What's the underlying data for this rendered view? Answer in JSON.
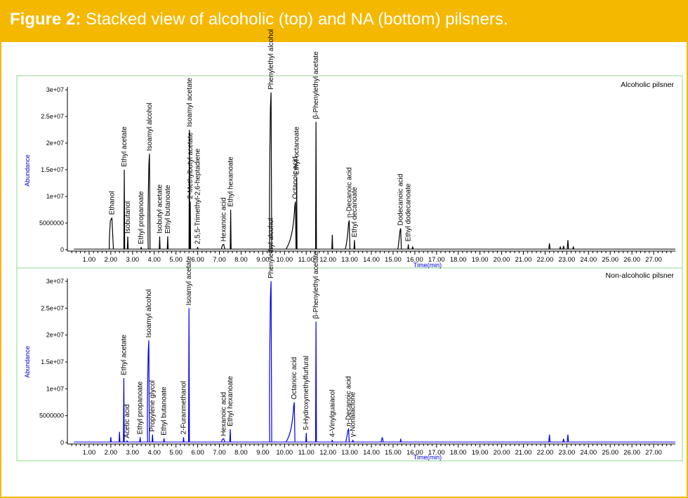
{
  "figure": {
    "label": "Figure 2:",
    "caption": "Stacked view of alcoholic (top) and NA (bottom) pilsners."
  },
  "colors": {
    "header": "#f5b800",
    "panel_border": "#8fd88f",
    "axis_label": "#0000dd"
  },
  "chart_data": [
    {
      "type": "line",
      "title": "Alcoholic pilsner",
      "xlabel": "Time(min)",
      "ylabel": "Abundance",
      "xlim": [
        0,
        28
      ],
      "ylim": [
        0,
        30000000
      ],
      "x_ticks": [
        1.0,
        2.0,
        3.0,
        4.0,
        5.0,
        6.0,
        7.0,
        8.0,
        9.0,
        10.0,
        11.0,
        12.0,
        13.0,
        14.0,
        15.0,
        16.0,
        17.0,
        18.0,
        19.0,
        20.0,
        21.0,
        22.0,
        23.0,
        24.0,
        25.0,
        26.0,
        27.0
      ],
      "x_tick_labels": [
        "1.00",
        "2.00",
        "3.00",
        "4.00",
        "5.00",
        "6.00",
        "7.00",
        "8.00",
        "9.00",
        "10.00",
        "11.00",
        "12.00",
        "13.00",
        "14.00",
        "15.00",
        "16.00",
        "17.00",
        "18.00",
        "19.00",
        "20.00",
        "21.00",
        "22.00",
        "23.00",
        "24.00",
        "25.00",
        "26.00",
        "27.00"
      ],
      "y_ticks": [
        0,
        5000000,
        10000000,
        15000000,
        20000000,
        25000000,
        30000000
      ],
      "y_tick_labels": [
        "0",
        "5000000",
        "1e+07",
        "1.5e+07",
        "2e+07",
        "2.5e+07",
        "3e+07"
      ],
      "grid": false,
      "legend": "none",
      "color": "#000000",
      "peaks": [
        {
          "label": "Ethanol",
          "x": 2.05,
          "y": 6000000,
          "w": 0.07,
          "tail": 0.05
        },
        {
          "label": "Ethyl acetate",
          "x": 2.62,
          "y": 15000000,
          "w": 0.02
        },
        {
          "label": "Isobutanol",
          "x": 2.78,
          "y": 2500000,
          "w": 0.02
        },
        {
          "label": "Ethyl propanoate",
          "x": 3.4,
          "y": 500000,
          "w": 0.02
        },
        {
          "label": "Isoamyl alcohol",
          "x": 3.78,
          "y": 18000000,
          "w": 0.025,
          "tail": 0.03
        },
        {
          "label": "Isobutyl acetate",
          "x": 4.25,
          "y": 2500000,
          "w": 0.02
        },
        {
          "label": "Ethyl butanoate",
          "x": 4.62,
          "y": 2500000,
          "w": 0.02
        },
        {
          "label": "Isoamyl acetate",
          "x": 5.62,
          "y": 22500000,
          "w": 0.02
        },
        {
          "label": "2-Methylbutyl acetate",
          "x": 5.66,
          "y": 9000000,
          "w": 0.015
        },
        {
          "label": "2,5,5-Trimethyl-2,6-heptadiene",
          "x": 6.0,
          "y": 500000,
          "w": 0.02
        },
        {
          "label": "Hexanoic acid",
          "x": 7.2,
          "y": 1000000,
          "w": 0.05,
          "tail": 0.05
        },
        {
          "label": "Ethyl hexanoate",
          "x": 7.52,
          "y": 7500000,
          "w": 0.02
        },
        {
          "label": "Phenylethyl alcohol",
          "x": 9.38,
          "y": 29500000,
          "w": 0.03,
          "tail": 0.03
        },
        {
          "label": "Octanoic acid",
          "x": 10.5,
          "y": 9000000,
          "w": 0.03,
          "tail": 0.4
        },
        {
          "label": "Ethyl octanoate",
          "x": 10.56,
          "y": 13500000,
          "w": 0.015
        },
        {
          "label": "β-Phenylethyl acetate",
          "x": 11.45,
          "y": 24000000,
          "w": 0.02
        },
        {
          "label": "",
          "x": 12.2,
          "y": 2800000,
          "w": 0.02
        },
        {
          "label": "n-Decanoic acid",
          "x": 12.98,
          "y": 5500000,
          "w": 0.03,
          "tail": 0.15
        },
        {
          "label": "Ethyl decanoate",
          "x": 13.22,
          "y": 1800000,
          "w": 0.02
        },
        {
          "label": "Dodecanoic acid",
          "x": 15.35,
          "y": 4000000,
          "w": 0.03,
          "tail": 0.1
        },
        {
          "label": "Ethyl dodecanoate",
          "x": 15.7,
          "y": 1000000,
          "w": 0.02
        },
        {
          "label": "",
          "x": 15.9,
          "y": 500000,
          "w": 0.03
        },
        {
          "label": "",
          "x": 22.2,
          "y": 1200000,
          "w": 0.03
        },
        {
          "label": "",
          "x": 22.7,
          "y": 500000,
          "w": 0.03
        },
        {
          "label": "",
          "x": 22.85,
          "y": 700000,
          "w": 0.03
        },
        {
          "label": "",
          "x": 23.05,
          "y": 1800000,
          "w": 0.03
        },
        {
          "label": "",
          "x": 23.3,
          "y": 500000,
          "w": 0.03
        }
      ]
    },
    {
      "type": "line",
      "title": "Non-alcoholic pilsner",
      "xlabel": "Time(min)",
      "ylabel": "Abundance",
      "xlim": [
        0,
        28
      ],
      "ylim": [
        0,
        30000000
      ],
      "x_ticks": [
        1.0,
        2.0,
        3.0,
        4.0,
        5.0,
        6.0,
        7.0,
        8.0,
        9.0,
        10.0,
        11.0,
        12.0,
        13.0,
        14.0,
        15.0,
        16.0,
        17.0,
        18.0,
        19.0,
        20.0,
        21.0,
        22.0,
        23.0,
        24.0,
        25.0,
        26.0,
        27.0
      ],
      "x_tick_labels": [
        "1.00",
        "2.00",
        "3.00",
        "4.00",
        "5.00",
        "6.00",
        "7.00",
        "8.00",
        "9.00",
        "10.00",
        "11.00",
        "12.00",
        "13.00",
        "14.00",
        "15.00",
        "16.00",
        "17.00",
        "18.00",
        "19.00",
        "20.00",
        "21.00",
        "22.00",
        "23.00",
        "24.00",
        "25.00",
        "26.00",
        "27.00"
      ],
      "y_ticks": [
        0,
        5000000,
        10000000,
        15000000,
        20000000,
        25000000,
        30000000
      ],
      "y_tick_labels": [
        "0",
        "5000000",
        "1e+07",
        "1.5e+07",
        "2e+07",
        "2.5e+07",
        "3e+07"
      ],
      "grid": false,
      "legend": "none",
      "color": "#0000ee",
      "peaks": [
        {
          "label": "",
          "x": 2.0,
          "y": 1000000,
          "w": 0.02
        },
        {
          "label": "",
          "x": 2.4,
          "y": 2000000,
          "w": 0.02
        },
        {
          "label": "Ethyl acetate",
          "x": 2.6,
          "y": 12000000,
          "w": 0.02
        },
        {
          "label": "Acetic acid",
          "x": 2.75,
          "y": 300000,
          "w": 0.03
        },
        {
          "label": "Ethyl propanoate",
          "x": 3.35,
          "y": 1000000,
          "w": 0.02
        },
        {
          "label": "Isoamyl alcohol",
          "x": 3.75,
          "y": 19000000,
          "w": 0.025,
          "tail": 0.03
        },
        {
          "label": "Propylene glycol",
          "x": 3.92,
          "y": 1500000,
          "w": 0.02
        },
        {
          "label": "Ethyl butanoate",
          "x": 4.45,
          "y": 800000,
          "w": 0.02
        },
        {
          "label": "2-Furanmethanol",
          "x": 5.35,
          "y": 1000000,
          "w": 0.02
        },
        {
          "label": "Isoamyl acetate",
          "x": 5.6,
          "y": 25000000,
          "w": 0.02
        },
        {
          "label": "Hexanoic acid",
          "x": 7.2,
          "y": 700000,
          "w": 0.05,
          "tail": 0.05
        },
        {
          "label": "Ethyl hexanoate",
          "x": 7.5,
          "y": 2500000,
          "w": 0.02
        },
        {
          "label": "Phenylethyl alcohol",
          "x": 9.38,
          "y": 30000000,
          "w": 0.03,
          "tail": 0.03
        },
        {
          "label": "Octanoic acid",
          "x": 10.45,
          "y": 7500000,
          "w": 0.03,
          "tail": 0.35
        },
        {
          "label": "5-Hydroxymethylfurfural",
          "x": 11.0,
          "y": 1800000,
          "w": 0.02
        },
        {
          "label": "β-Phenylethyl acetate",
          "x": 11.45,
          "y": 22500000,
          "w": 0.02
        },
        {
          "label": "4-Vinylguaiacol",
          "x": 12.2,
          "y": 500000,
          "w": 0.02
        },
        {
          "label": "n-Decanoic acid",
          "x": 12.95,
          "y": 2500000,
          "w": 0.03,
          "tail": 0.1
        },
        {
          "label": "γ-Nonalactone",
          "x": 13.15,
          "y": 500000,
          "w": 0.02
        },
        {
          "label": "",
          "x": 14.5,
          "y": 1000000,
          "w": 0.05
        },
        {
          "label": "",
          "x": 15.35,
          "y": 700000,
          "w": 0.02
        },
        {
          "label": "",
          "x": 22.2,
          "y": 1500000,
          "w": 0.03
        },
        {
          "label": "",
          "x": 22.85,
          "y": 700000,
          "w": 0.03
        },
        {
          "label": "",
          "x": 23.05,
          "y": 1500000,
          "w": 0.03
        }
      ]
    }
  ]
}
